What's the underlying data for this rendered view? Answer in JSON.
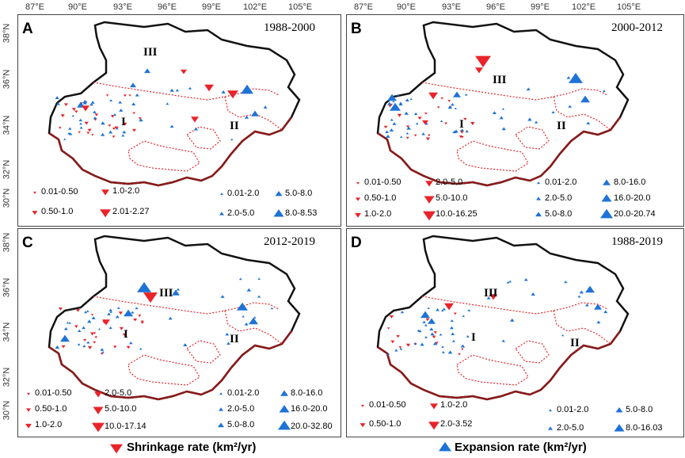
{
  "x_ticks": [
    "87°E",
    "90°E",
    "93°E",
    "96°E",
    "99°E",
    "102°E",
    "105°E"
  ],
  "y_ticks": [
    "38°N",
    "36°N",
    "34°N",
    "32°N",
    "30°N"
  ],
  "panels": [
    {
      "letter": "A",
      "period": "1988-2000",
      "regions": [
        "I",
        "II",
        "III"
      ],
      "shrink_legend": [
        "0.01-0.50",
        "1.0-2.0",
        "0.50-1.0",
        "2.01-2.27"
      ],
      "expand_legend": [
        "0.01-2.0",
        "5.0-8.0",
        "2.0-5.0",
        "8.0-8.53"
      ]
    },
    {
      "letter": "B",
      "period": "2000-2012",
      "regions": [
        "I",
        "II",
        "III"
      ],
      "shrink_legend": [
        "0.01-0.50",
        "2.0-5.0",
        "0.50-1.0",
        "5.0-10.0",
        "1.0-2.0",
        "10.0-16.25"
      ],
      "expand_legend": [
        "0.01-2.0",
        "8.0-16.0",
        "2.0-5.0",
        "16.0-20.0",
        "5.0-8.0",
        "20.0-20.74"
      ]
    },
    {
      "letter": "C",
      "period": "2012-2019",
      "regions": [
        "I",
        "II",
        "III"
      ],
      "shrink_legend": [
        "0.01-0.50",
        "2.0-5.0",
        "0.50-1.0",
        "5.0-10.0",
        "1.0-2.0",
        "10.0-17.14"
      ],
      "expand_legend": [
        "0.01-2.0",
        "8.0-16.0",
        "2.0-5.0",
        "16.0-20.0",
        "5.0-8.0",
        "20.0-32.80"
      ]
    },
    {
      "letter": "D",
      "period": "1988-2019",
      "regions": [
        "I",
        "II",
        "III"
      ],
      "shrink_legend": [
        "0.01-0.50",
        "1.0-2.0",
        "0.50-1.0",
        "2.0-3.52"
      ],
      "expand_legend": [
        "0.01-2.0",
        "5.0-8.0",
        "2.0-5.0",
        "8.0-16.03"
      ]
    }
  ],
  "bottom": {
    "shrinkage_label": "Shrinkage rate (km²/yr)",
    "expansion_label": "Expansion rate (km²/yr)"
  },
  "colors": {
    "shrink": "#e8242a",
    "expand": "#1e73d6",
    "outline": "#111111",
    "region_border": "#8b1a1a",
    "dotted": "#e8242a"
  }
}
